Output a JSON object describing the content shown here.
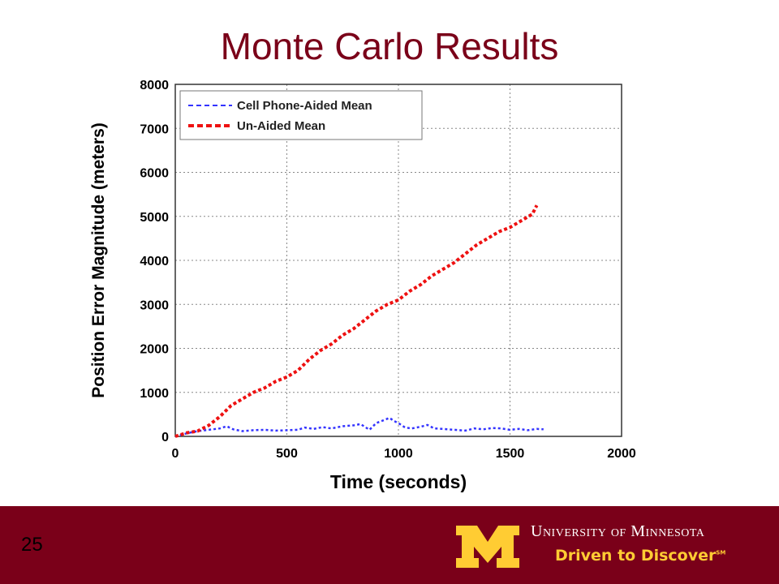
{
  "slide": {
    "title": "Monte Carlo Results",
    "page_number": "25"
  },
  "branding": {
    "university": "University of Minnesota",
    "tagline": "Driven to Discover",
    "tagline_mark": "SM",
    "logo_icon": "block-m-icon",
    "colors": {
      "maroon": "#7a0019",
      "gold": "#ffcc33"
    }
  },
  "chart_data": {
    "type": "line",
    "title": "",
    "xlabel": "Time (seconds)",
    "ylabel": "Position Error Magnitude (meters)",
    "xlim": [
      0,
      2000
    ],
    "ylim": [
      0,
      8000
    ],
    "xticks": [
      "0",
      "500",
      "1000",
      "1500",
      "2000"
    ],
    "yticks": [
      "0",
      "1000",
      "2000",
      "3000",
      "4000",
      "5000",
      "6000",
      "7000",
      "8000"
    ],
    "grid": true,
    "legend_position": "top-left",
    "series": [
      {
        "name": "Cell Phone-Aided Mean",
        "color": "#3333ff",
        "style": "dashed",
        "x": [
          0,
          60,
          100,
          150,
          200,
          230,
          260,
          300,
          350,
          400,
          450,
          500,
          550,
          580,
          620,
          660,
          700,
          750,
          800,
          830,
          870,
          900,
          940,
          960,
          980,
          1000,
          1030,
          1060,
          1100,
          1130,
          1160,
          1200,
          1250,
          1300,
          1340,
          1380,
          1420,
          1460,
          1500,
          1540,
          1580,
          1620,
          1650
        ],
        "y": [
          0,
          80,
          120,
          150,
          180,
          230,
          160,
          120,
          140,
          150,
          130,
          140,
          150,
          200,
          170,
          210,
          180,
          230,
          250,
          280,
          150,
          300,
          380,
          420,
          350,
          300,
          200,
          180,
          220,
          260,
          180,
          170,
          150,
          130,
          180,
          160,
          190,
          180,
          150,
          170,
          140,
          170,
          160
        ]
      },
      {
        "name": "Un-Aided Mean",
        "color": "#ee1111",
        "style": "dashed",
        "x": [
          0,
          50,
          100,
          150,
          200,
          250,
          300,
          350,
          400,
          450,
          500,
          550,
          600,
          650,
          700,
          750,
          800,
          850,
          900,
          950,
          1000,
          1050,
          1100,
          1150,
          1200,
          1250,
          1300,
          1350,
          1400,
          1450,
          1500,
          1550,
          1600,
          1620
        ],
        "y": [
          0,
          80,
          120,
          250,
          450,
          700,
          850,
          1000,
          1100,
          1250,
          1350,
          1500,
          1750,
          1950,
          2100,
          2300,
          2450,
          2650,
          2850,
          3000,
          3100,
          3300,
          3450,
          3650,
          3800,
          3950,
          4150,
          4350,
          4500,
          4650,
          4750,
          4900,
          5050,
          5250
        ]
      }
    ]
  }
}
